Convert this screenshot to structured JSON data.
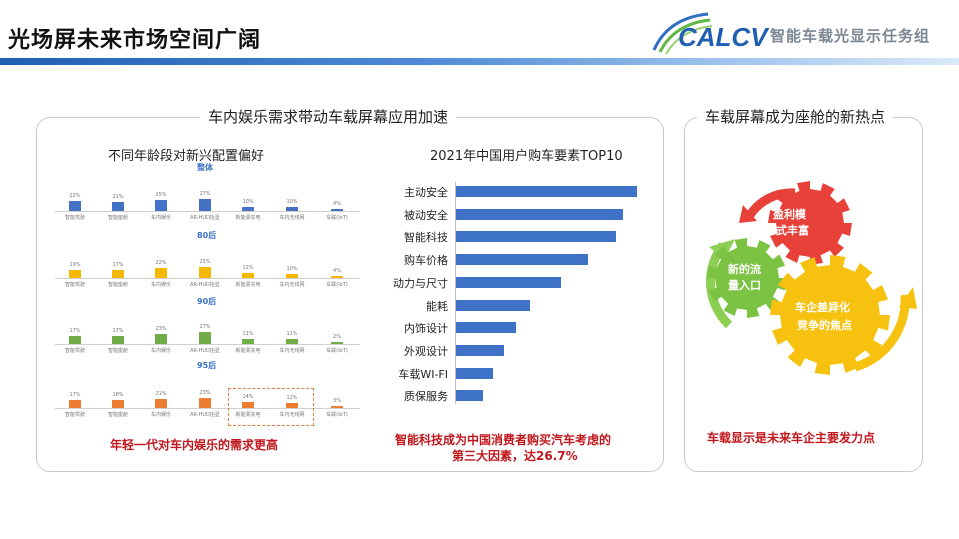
{
  "header": {
    "title": "光场屏未来市场空间广阔",
    "logo_letters": "CALCV",
    "logo_org": "智能车载光显示任务组"
  },
  "left_panel": {
    "title": "车内娱乐需求带动车载屏幕应用加速",
    "age_chart": {
      "title": "不同年龄段对新兴配置偏好",
      "groups": [
        {
          "label": "整体",
          "color": "#4472c4",
          "values": [
            "22%",
            "21%",
            "25%",
            "27%",
            "10%",
            "10%",
            "4%"
          ]
        },
        {
          "label": "80后",
          "color": "#f5b800",
          "values": [
            "19%",
            "17%",
            "22%",
            "25%",
            "12%",
            "10%",
            "4%"
          ]
        },
        {
          "label": "90后",
          "color": "#70ad47",
          "values": [
            "17%",
            "17%",
            "23%",
            "27%",
            "11%",
            "11%",
            "2%"
          ]
        },
        {
          "label": "95后",
          "color": "#ed7d31",
          "values": [
            "17%",
            "18%",
            "21%",
            "23%",
            "14%",
            "12%",
            "3%"
          ]
        }
      ],
      "categories": [
        [
          "智能驾驶",
          "智能座舱",
          "车内娱乐",
          "AR-HUD抬显",
          "新能源充电",
          "车内无线网",
          "车联(IoT)"
        ],
        [
          "智能驾驶",
          "智能座舱",
          "车内娱乐",
          "AR-HUD抬显",
          "新能源充电",
          "车内无线网",
          "车联(IoT)"
        ],
        [
          "智能驾驶",
          "智能座舱",
          "车内娱乐",
          "AR-HUD抬显",
          "新能源充电",
          "车内无线网",
          "车联(IoT)"
        ],
        [
          "智能驾驶",
          "智能座舱",
          "车内娱乐",
          "AR-HUD抬显",
          "新能源充电",
          "车内无线网",
          "车联(IoT)"
        ]
      ],
      "conclusion": "年轻一代对车内娱乐的需求更高"
    },
    "conclusion_right_line1": "智能科技成为中国消费者购买汽车考虑的",
    "conclusion_right_line2": "第三大因素，达26.7%"
  },
  "chart_data": {
    "type": "bar",
    "title": "2021年中国用户购车要素TOP10",
    "orientation": "horizontal",
    "categories": [
      "主动安全",
      "被动安全",
      "智能科技",
      "购车价格",
      "动力与尺寸",
      "能耗",
      "内饰设计",
      "外观设计",
      "车载WI-FI",
      "质保服务"
    ],
    "values": [
      30.2,
      27.9,
      26.7,
      22.0,
      17.5,
      12.4,
      10.0,
      8.0,
      6.1,
      4.5
    ],
    "xlabel": "",
    "ylabel": "",
    "xlim": [
      0,
      32
    ],
    "grid": false
  },
  "right_panel": {
    "title": "车载屏幕成为座舱的新热点",
    "gear_red": [
      "盈利模",
      "式丰富"
    ],
    "gear_green": [
      "新的流",
      "量入口"
    ],
    "gear_yellow": [
      "车企差异化",
      "竞争的焦点"
    ],
    "colors": {
      "red": "#e8413a",
      "green": "#7cc243",
      "yellow": "#f7c20f"
    },
    "conclusion": "车载显示是未来车企主要发力点"
  }
}
